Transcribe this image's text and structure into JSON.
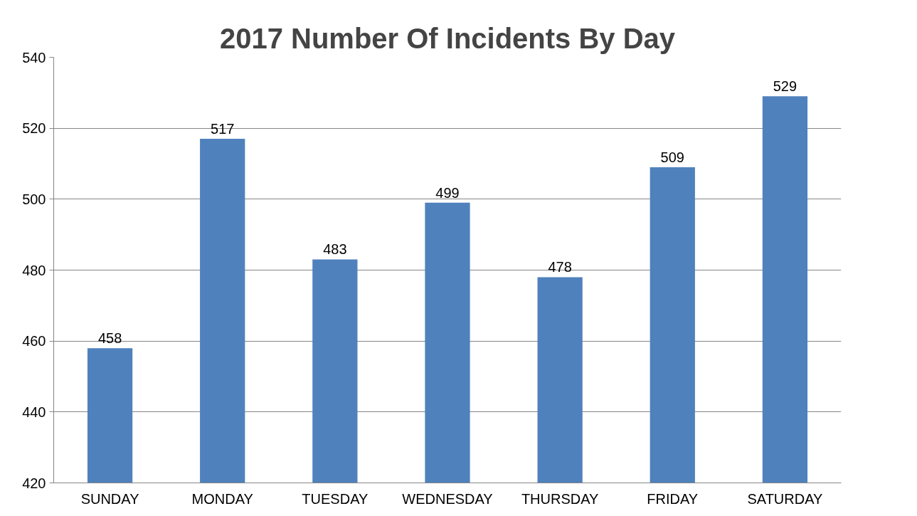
{
  "chart_data": {
    "type": "bar",
    "title": "2017 Number Of Incidents By Day",
    "categories": [
      "SUNDAY",
      "MONDAY",
      "TUESDAY",
      "WEDNESDAY",
      "THURSDAY",
      "FRIDAY",
      "SATURDAY"
    ],
    "values": [
      458,
      517,
      483,
      499,
      478,
      509,
      529
    ],
    "color": "#4f81bd",
    "ylim": [
      420,
      540
    ],
    "yticks": [
      420,
      440,
      460,
      480,
      500,
      520,
      540
    ],
    "grid": "y",
    "data_labels": true
  }
}
